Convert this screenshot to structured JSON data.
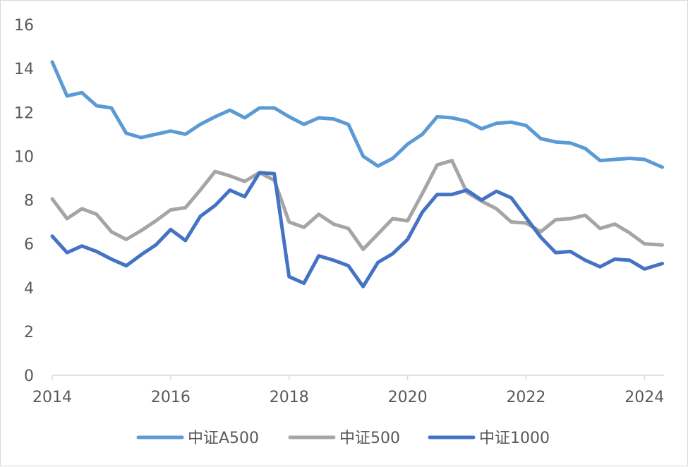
{
  "chart_data": {
    "type": "line",
    "title": "",
    "xlabel": "",
    "ylabel": "",
    "ylim": [
      0,
      16
    ],
    "yticks": [
      0,
      2,
      4,
      6,
      8,
      10,
      12,
      14,
      16
    ],
    "xlim": [
      2014,
      2024.33
    ],
    "xticks": [
      "2014",
      "2016",
      "2018",
      "2020",
      "2022",
      "2024"
    ],
    "grid": false,
    "legend_position": "bottom",
    "series": [
      {
        "name": "中证A500",
        "color": "#5b9bd5",
        "x": [
          2014.0,
          2014.25,
          2014.5,
          2014.75,
          2015.0,
          2015.25,
          2015.5,
          2015.75,
          2016.0,
          2016.25,
          2016.5,
          2016.75,
          2017.0,
          2017.25,
          2017.5,
          2017.75,
          2018.0,
          2018.25,
          2018.5,
          2018.75,
          2019.0,
          2019.25,
          2019.5,
          2019.75,
          2020.0,
          2020.25,
          2020.5,
          2020.75,
          2021.0,
          2021.25,
          2021.5,
          2021.75,
          2022.0,
          2022.25,
          2022.5,
          2022.75,
          2023.0,
          2023.25,
          2023.5,
          2023.75,
          2024.0,
          2024.3
        ],
        "y": [
          14.3,
          12.75,
          12.9,
          12.3,
          12.2,
          11.05,
          10.85,
          11.0,
          11.15,
          11.0,
          11.45,
          11.8,
          12.1,
          11.75,
          12.2,
          12.2,
          11.8,
          11.45,
          11.75,
          11.7,
          11.45,
          10.0,
          9.55,
          9.9,
          10.55,
          11.0,
          11.8,
          11.75,
          11.6,
          11.25,
          11.5,
          11.55,
          11.4,
          10.8,
          10.65,
          10.6,
          10.35,
          9.8,
          9.85,
          9.9,
          9.85,
          9.5
        ]
      },
      {
        "name": "中证500",
        "color": "#a5a5a5",
        "x": [
          2014.0,
          2014.25,
          2014.5,
          2014.75,
          2015.0,
          2015.25,
          2015.5,
          2015.75,
          2016.0,
          2016.25,
          2016.5,
          2016.75,
          2017.0,
          2017.25,
          2017.5,
          2017.75,
          2018.0,
          2018.25,
          2018.5,
          2018.75,
          2019.0,
          2019.25,
          2019.5,
          2019.75,
          2020.0,
          2020.25,
          2020.5,
          2020.75,
          2021.0,
          2021.25,
          2021.5,
          2021.75,
          2022.0,
          2022.25,
          2022.5,
          2022.75,
          2023.0,
          2023.25,
          2023.5,
          2023.75,
          2024.0,
          2024.3
        ],
        "y": [
          8.05,
          7.15,
          7.6,
          7.35,
          6.55,
          6.2,
          6.6,
          7.05,
          7.55,
          7.65,
          8.45,
          9.3,
          9.1,
          8.85,
          9.25,
          8.9,
          7.0,
          6.75,
          7.35,
          6.9,
          6.7,
          5.75,
          6.45,
          7.15,
          7.05,
          8.3,
          9.6,
          9.8,
          8.35,
          7.95,
          7.6,
          7.0,
          6.95,
          6.55,
          7.1,
          7.15,
          7.3,
          6.7,
          6.9,
          6.5,
          6.0,
          5.95
        ]
      },
      {
        "name": "中证1000",
        "color": "#4472c4",
        "x": [
          2014.0,
          2014.25,
          2014.5,
          2014.75,
          2015.0,
          2015.25,
          2015.5,
          2015.75,
          2016.0,
          2016.25,
          2016.5,
          2016.75,
          2017.0,
          2017.25,
          2017.5,
          2017.75,
          2018.0,
          2018.25,
          2018.5,
          2018.75,
          2019.0,
          2019.25,
          2019.5,
          2019.75,
          2020.0,
          2020.25,
          2020.5,
          2020.75,
          2021.0,
          2021.25,
          2021.5,
          2021.75,
          2022.0,
          2022.25,
          2022.5,
          2022.75,
          2023.0,
          2023.25,
          2023.5,
          2023.75,
          2024.0,
          2024.3
        ],
        "y": [
          6.35,
          5.6,
          5.9,
          5.65,
          5.3,
          5.0,
          5.5,
          5.95,
          6.65,
          6.15,
          7.25,
          7.75,
          8.45,
          8.15,
          9.25,
          9.2,
          4.5,
          4.2,
          5.45,
          5.25,
          5.0,
          4.05,
          5.15,
          5.55,
          6.2,
          7.45,
          8.25,
          8.25,
          8.45,
          8.0,
          8.4,
          8.1,
          7.2,
          6.3,
          5.6,
          5.65,
          5.25,
          4.95,
          5.3,
          5.25,
          4.85,
          5.1
        ]
      }
    ]
  }
}
